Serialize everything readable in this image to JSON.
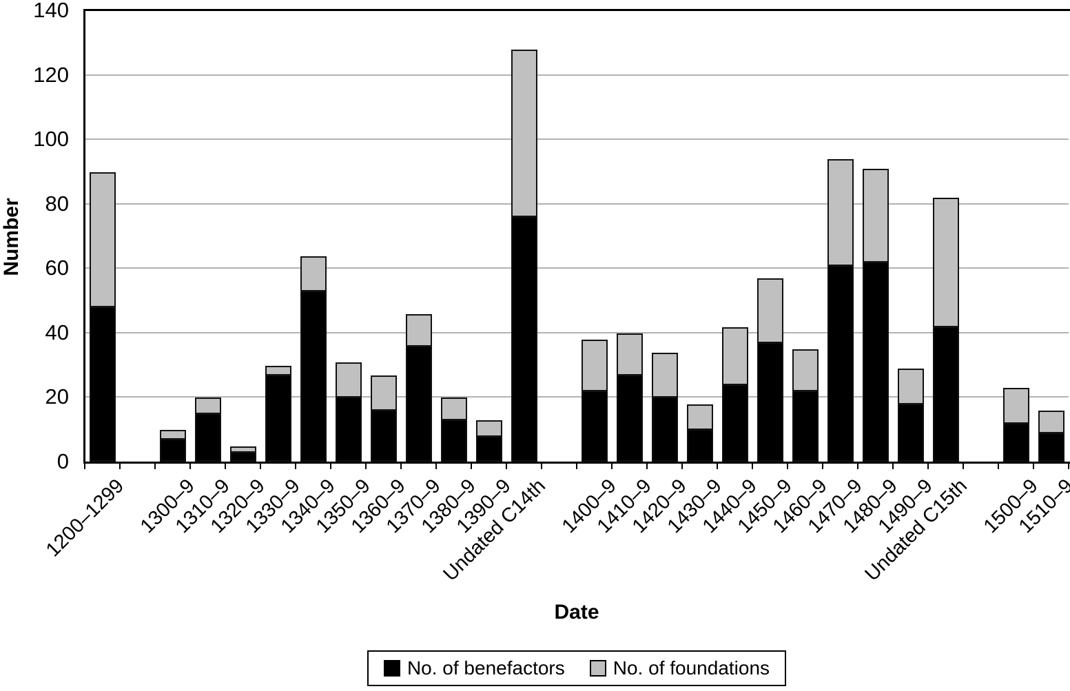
{
  "chart_data": {
    "type": "bar",
    "stacked": true,
    "title": "",
    "xlabel": "Date",
    "ylabel": "Number",
    "ylim": [
      0,
      140
    ],
    "ytick_step": 20,
    "grid": true,
    "legend_position": "bottom",
    "gridline_color": "#b2b2b2",
    "categories": [
      "1200–1299",
      "1300–9",
      "1310–9",
      "1320–9",
      "1330–9",
      "1340–9",
      "1350–9",
      "1360–9",
      "1370–9",
      "1380–9",
      "1390–9",
      "Undated C14th",
      "1400–9",
      "1410–9",
      "1420–9",
      "1430–9",
      "1440–9",
      "1450–9",
      "1460–9",
      "1470–9",
      "1480–9",
      "1490–9",
      "Undated C15th",
      "1500–9",
      "1510–9"
    ],
    "group_gaps_after": [
      "1200–1299",
      "Undated C14th",
      "Undated C15th"
    ],
    "series": [
      {
        "name": "No. of benefactors",
        "color": "#000000",
        "values": [
          48,
          7,
          15,
          3,
          27,
          53,
          20,
          16,
          36,
          13,
          8,
          76,
          22,
          27,
          20,
          10,
          24,
          37,
          22,
          61,
          62,
          18,
          42,
          12,
          9
        ]
      },
      {
        "name": "No. of foundations",
        "color": "#c0c0c0",
        "values": [
          42,
          3,
          5,
          2,
          3,
          11,
          11,
          11,
          10,
          7,
          5,
          52,
          16,
          13,
          14,
          8,
          18,
          20,
          13,
          33,
          29,
          11,
          40,
          11,
          7
        ]
      }
    ]
  }
}
